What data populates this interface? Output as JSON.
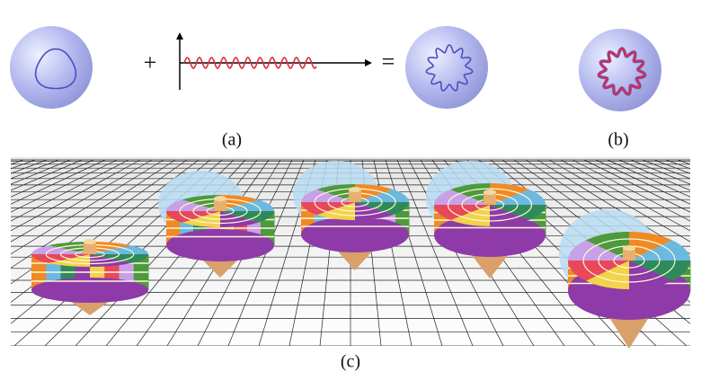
{
  "panel_a": {
    "plus": "+",
    "equals": "=",
    "label": "(a)"
  },
  "panel_b": {
    "label": "(b)"
  },
  "panel_c": {
    "label": "(c)"
  }
}
